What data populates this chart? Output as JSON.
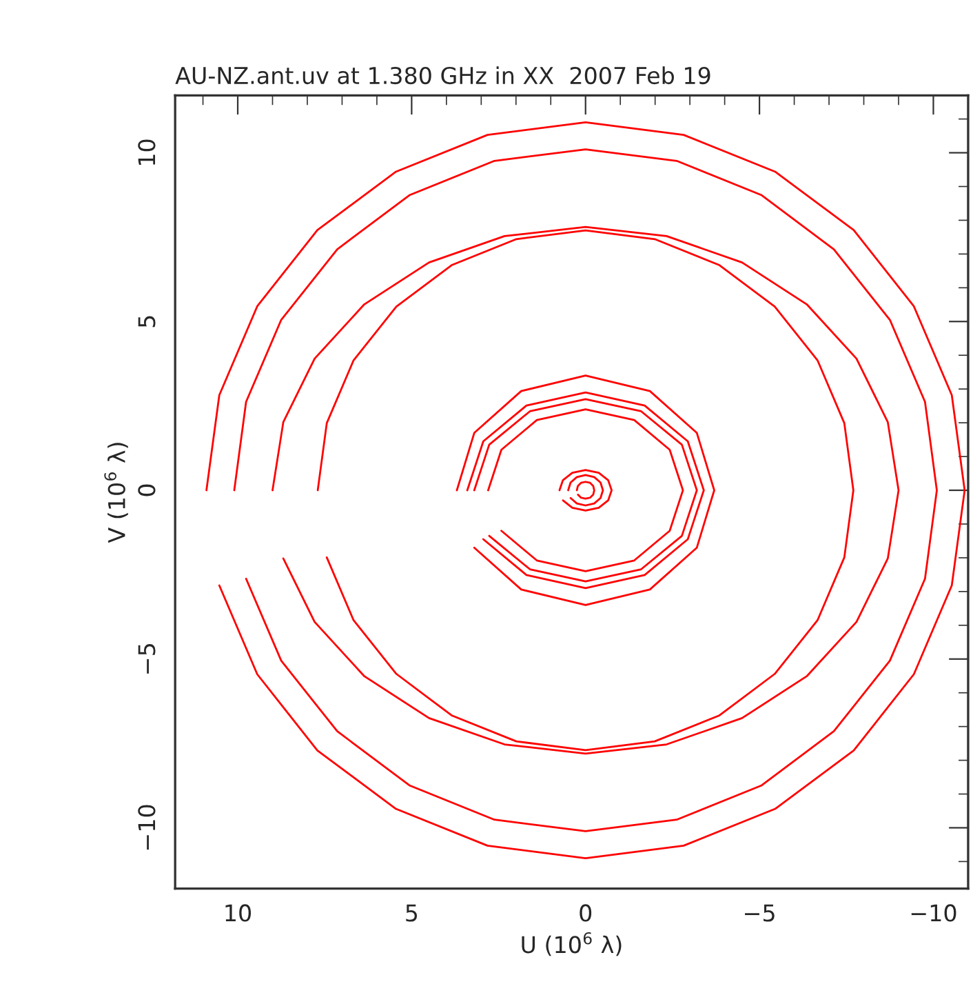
{
  "chart_data": {
    "type": "line",
    "title": "AU-NZ.ant.uv at 1.380 GHz in XX  2007 Feb 19",
    "xlabel": "U (10$^{6}$ λ)",
    "ylabel": "V (10$^{6}$ λ)",
    "xlim": [
      11.8,
      -11.0
    ],
    "ylim": [
      -11.8,
      11.7
    ],
    "xticks": [
      10,
      5,
      0,
      {
        "value": -5,
        "label": "−5"
      },
      {
        "value": -10,
        "label": "−10"
      }
    ],
    "yticks": [
      {
        "value": -10,
        "label": "−10"
      },
      {
        "value": -5,
        "label": "−5"
      },
      0,
      5,
      10
    ],
    "grid": false,
    "marker": "none",
    "line_style": "solid",
    "series": [
      {
        "color": "#ff0000",
        "x": [
          10.9,
          10.53,
          9.44,
          7.71,
          5.45,
          2.82,
          0,
          -2.82,
          -5.45,
          -7.71,
          -9.44,
          -10.53,
          -10.9,
          -10.53,
          -9.44,
          -7.71,
          -5.45,
          -2.82,
          0,
          2.82,
          5.45,
          7.71,
          9.44,
          10.53
        ],
        "values": [
          0,
          2.82,
          5.45,
          7.71,
          9.44,
          10.53,
          10.9,
          10.53,
          9.44,
          7.71,
          5.45,
          2.82,
          0,
          -2.82,
          -5.45,
          -7.71,
          -9.44,
          -10.53,
          -10.9,
          -10.53,
          -9.44,
          -7.71,
          -5.45,
          -2.82
        ]
      },
      {
        "color": "#ff0000",
        "x": [
          10.1,
          9.76,
          8.75,
          7.14,
          5.05,
          2.62,
          0,
          -2.62,
          -5.05,
          -7.14,
          -8.75,
          -9.76,
          -10.1,
          -9.76,
          -8.75,
          -7.14,
          -5.05,
          -2.62,
          0,
          2.62,
          5.05,
          7.14,
          8.75,
          9.76
        ],
        "values": [
          0,
          2.62,
          5.05,
          7.14,
          8.75,
          9.76,
          10.1,
          9.76,
          8.75,
          7.14,
          5.05,
          2.62,
          0,
          -2.62,
          -5.05,
          -7.14,
          -8.75,
          -9.76,
          -10.1,
          -9.76,
          -8.75,
          -7.14,
          -5.05,
          -2.62
        ]
      },
      {
        "color": "#ff0000",
        "x": [
          9,
          8.69,
          7.79,
          6.36,
          4.5,
          2.33,
          0,
          -2.33,
          -4.5,
          -6.36,
          -7.79,
          -8.69,
          -9,
          -8.69,
          -7.79,
          -6.36,
          -4.5,
          -2.33,
          0,
          2.33,
          4.5,
          6.36,
          7.79,
          8.69
        ],
        "values": [
          0,
          2.02,
          3.9,
          5.51,
          6.75,
          7.53,
          7.8,
          7.53,
          6.75,
          5.51,
          3.9,
          2.02,
          0,
          -2.02,
          -3.9,
          -5.51,
          -6.75,
          -7.53,
          -7.8,
          -7.53,
          -6.75,
          -5.51,
          -3.9,
          -2.02
        ]
      },
      {
        "color": "#ff0000",
        "x": [
          7.7,
          7.44,
          6.67,
          5.44,
          3.85,
          1.99,
          0,
          -1.99,
          -3.85,
          -5.44,
          -6.67,
          -7.44,
          -7.7,
          -7.44,
          -6.67,
          -5.44,
          -3.85,
          -1.99,
          0,
          1.99,
          3.85,
          5.44,
          6.67,
          7.44
        ],
        "values": [
          0,
          1.99,
          3.85,
          5.44,
          6.67,
          7.44,
          7.7,
          7.44,
          6.67,
          5.44,
          3.85,
          1.99,
          0,
          -1.99,
          -3.85,
          -5.44,
          -6.67,
          -7.44,
          -7.7,
          -7.44,
          -6.67,
          -5.44,
          -3.85,
          -1.99
        ]
      },
      {
        "color": "#ff0000",
        "x": [
          3.7,
          3.2,
          1.85,
          0,
          -1.85,
          -3.2,
          -3.7,
          -3.2,
          -1.85,
          0,
          1.85,
          3.2
        ],
        "values": [
          0,
          1.7,
          2.94,
          3.4,
          2.94,
          1.7,
          0,
          -1.7,
          -2.94,
          -3.4,
          -2.94,
          -1.7
        ]
      },
      {
        "color": "#ff0000",
        "x": [
          3.4,
          2.94,
          1.7,
          0,
          -1.7,
          -2.94,
          -3.4,
          -2.94,
          -1.7,
          0,
          1.7,
          2.94
        ],
        "values": [
          0,
          1.45,
          2.51,
          2.9,
          2.51,
          1.45,
          0,
          -1.45,
          -2.51,
          -2.9,
          -2.51,
          -1.45
        ]
      },
      {
        "color": "#ff0000",
        "x": [
          3.2,
          2.77,
          1.6,
          0,
          -1.6,
          -2.77,
          -3.2,
          -2.77,
          -1.6,
          0,
          1.6,
          2.77
        ],
        "values": [
          0,
          1.35,
          2.34,
          2.7,
          2.34,
          1.35,
          0,
          -1.35,
          -2.34,
          -2.7,
          -2.34,
          -1.35
        ]
      },
      {
        "color": "#ff0000",
        "x": [
          2.8,
          2.42,
          1.4,
          0,
          -1.4,
          -2.42,
          -2.8,
          -2.42,
          -1.4,
          0,
          1.4,
          2.42
        ],
        "values": [
          0,
          1.2,
          2.08,
          2.4,
          2.08,
          1.2,
          0,
          -1.2,
          -2.08,
          -2.4,
          -2.08,
          -1.2
        ]
      },
      {
        "color": "#ff0000",
        "x": [
          0.75,
          0.65,
          0.38,
          0,
          -0.38,
          -0.65,
          -0.75,
          -0.65,
          -0.38,
          0,
          0.38,
          0.65
        ],
        "values": [
          0,
          0.3,
          0.52,
          0.6,
          0.52,
          0.3,
          0,
          -0.3,
          -0.52,
          -0.6,
          -0.52,
          -0.3
        ]
      },
      {
        "color": "#ff0000",
        "x": [
          0.5,
          0.43,
          0.25,
          0,
          -0.25,
          -0.43,
          -0.5,
          -0.43,
          -0.25,
          0,
          0.25,
          0.43
        ],
        "values": [
          0,
          0.23,
          0.39,
          0.45,
          0.39,
          0.23,
          0,
          -0.23,
          -0.39,
          -0.45,
          -0.39,
          -0.23
        ]
      },
      {
        "color": "#ff0000",
        "x": [
          0.25,
          0.22,
          0.13,
          0,
          -0.13,
          -0.22,
          -0.25,
          -0.22,
          -0.13,
          0,
          0.13,
          0.22
        ],
        "values": [
          0,
          0.13,
          0.22,
          0.25,
          0.22,
          0.13,
          0,
          -0.13,
          -0.22,
          -0.25,
          -0.22,
          -0.13
        ]
      }
    ]
  }
}
